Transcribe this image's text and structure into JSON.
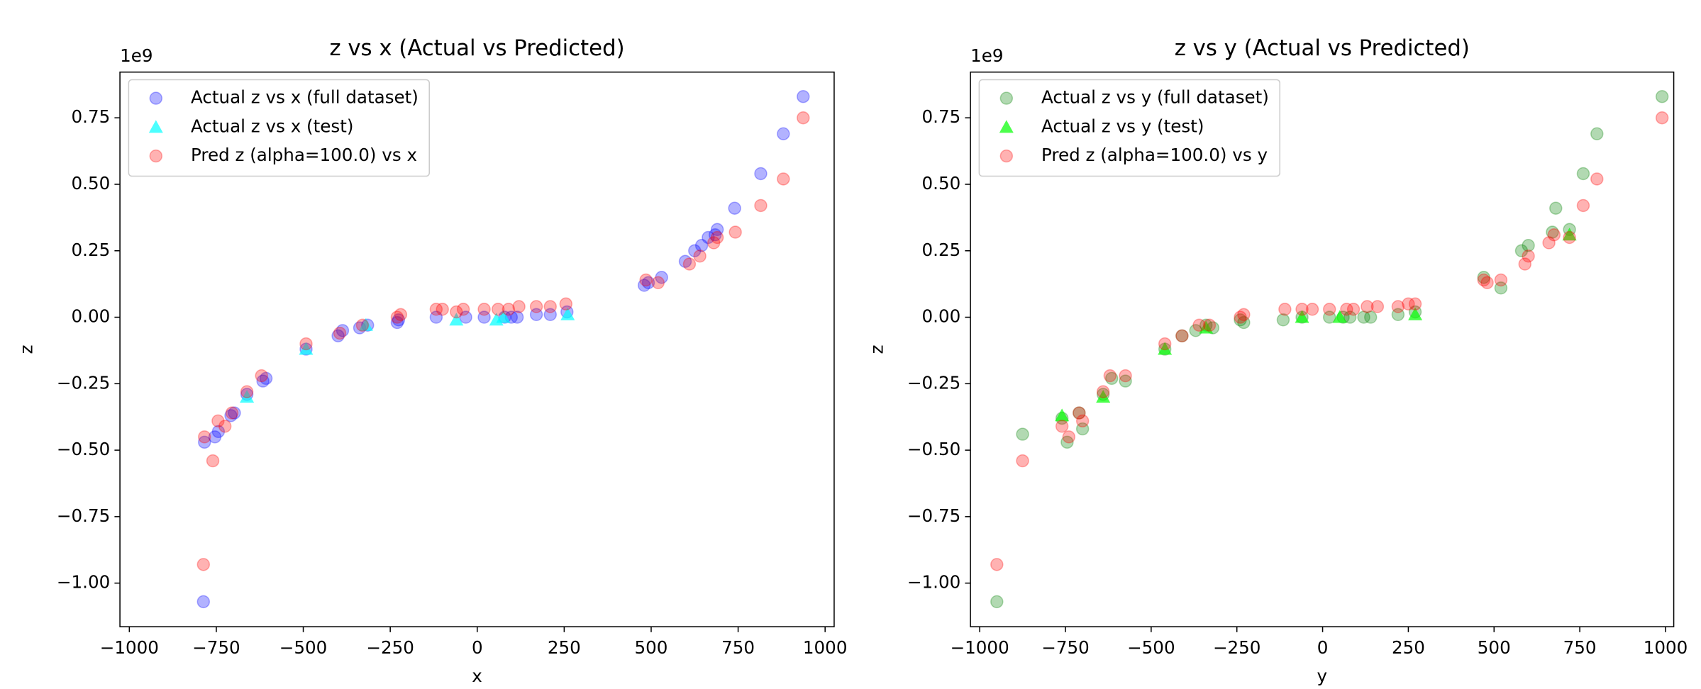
{
  "chart_data": [
    {
      "type": "scatter",
      "title": "z vs x (Actual vs Predicted)",
      "x_label": "x",
      "y_label": "z",
      "y_offset_label": "1e9",
      "xlim": [
        -1027,
        1026
      ],
      "ylim": [
        -1.164,
        0.922
      ],
      "legend": "upper left",
      "xticks": [
        {
          "value": -1000,
          "label": "−1000"
        },
        {
          "value": -750,
          "label": "−750"
        },
        {
          "value": -500,
          "label": "−500"
        },
        {
          "value": -250,
          "label": "−250"
        },
        0,
        250,
        500,
        750,
        1000
      ],
      "yticks": [
        {
          "value": -1,
          "label": "−1.00"
        },
        {
          "value": -0.75,
          "label": "−0.75"
        },
        {
          "value": -0.5,
          "label": "−0.50"
        },
        {
          "value": -0.25,
          "label": "−0.25"
        },
        {
          "value": 0,
          "label": "0.00"
        },
        0.25,
        {
          "value": 0.5,
          "label": "0.50"
        },
        0.75
      ],
      "series": [
        {
          "name": "Actual z vs x (full dataset)",
          "color": "#0000ff",
          "alpha": 0.3,
          "marker": "circle",
          "x": [
            -787,
            -784,
            -754,
            -744,
            -708,
            -698,
            -662,
            -616,
            -607,
            -492,
            -400,
            -387,
            -338,
            -315,
            -230,
            -226,
            -118,
            -33,
            20,
            79,
            98,
            115,
            170,
            210,
            258,
            480,
            492,
            530,
            598,
            625,
            645,
            664,
            684,
            690,
            740,
            815,
            880,
            937
          ],
          "values": [
            -1.07,
            -0.47,
            -0.45,
            -0.43,
            -0.37,
            -0.36,
            -0.29,
            -0.24,
            -0.23,
            -0.12,
            -0.07,
            -0.05,
            -0.04,
            -0.03,
            -0.02,
            -0.01,
            0,
            0,
            0,
            0,
            0,
            0,
            0.01,
            0.01,
            0.02,
            0.12,
            0.13,
            0.15,
            0.21,
            0.25,
            0.27,
            0.3,
            0.31,
            0.33,
            0.41,
            0.54,
            0.69,
            0.83
          ]
        },
        {
          "name": "Actual z vs x (test)",
          "color": "#00ffff",
          "alpha": 0.7,
          "marker": "triangle",
          "x": [
            -662,
            -492,
            -320,
            -60,
            55,
            75,
            260
          ],
          "values": [
            -0.3,
            -0.12,
            -0.03,
            -0.01,
            -0.01,
            0,
            0.01
          ]
        },
        {
          "name": "Pred z (alpha=100.0) vs x",
          "color": "#ff0000",
          "alpha": 0.3,
          "marker": "circle",
          "x": [
            -787,
            -784,
            -760,
            -745,
            -725,
            -705,
            -662,
            -620,
            -492,
            -395,
            -330,
            -230,
            -220,
            -118,
            -100,
            -60,
            -40,
            20,
            60,
            90,
            120,
            170,
            210,
            255,
            485,
            520,
            610,
            640,
            680,
            690,
            742,
            815,
            880,
            937
          ],
          "values": [
            -0.93,
            -0.45,
            -0.54,
            -0.39,
            -0.41,
            -0.36,
            -0.28,
            -0.22,
            -0.1,
            -0.06,
            -0.03,
            0,
            0.01,
            0.03,
            0.03,
            0.02,
            0.03,
            0.03,
            0.03,
            0.03,
            0.04,
            0.04,
            0.04,
            0.05,
            0.14,
            0.13,
            0.2,
            0.23,
            0.28,
            0.3,
            0.32,
            0.42,
            0.52,
            0.75
          ]
        }
      ]
    },
    {
      "type": "scatter",
      "title": "z vs y (Actual vs Predicted)",
      "x_label": "y",
      "y_label": "z",
      "y_offset_label": "1e9",
      "xlim": [
        -1027,
        1024
      ],
      "ylim": [
        -1.164,
        0.922
      ],
      "legend": "upper left",
      "xticks": [
        {
          "value": -1000,
          "label": "−1000"
        },
        {
          "value": -750,
          "label": "−750"
        },
        {
          "value": -500,
          "label": "−500"
        },
        {
          "value": -250,
          "label": "−250"
        },
        0,
        250,
        500,
        750,
        1000
      ],
      "yticks": [
        {
          "value": -1,
          "label": "−1.00"
        },
        {
          "value": -0.75,
          "label": "−0.75"
        },
        {
          "value": -0.5,
          "label": "−0.50"
        },
        {
          "value": -0.25,
          "label": "−0.25"
        },
        {
          "value": 0,
          "label": "0.00"
        },
        0.25,
        {
          "value": 0.5,
          "label": "0.50"
        },
        0.75
      ],
      "series": [
        {
          "name": "Actual z vs y (full dataset)",
          "color": "#008000",
          "alpha": 0.3,
          "marker": "circle",
          "x": [
            -950,
            -875,
            -760,
            -745,
            -710,
            -700,
            -640,
            -615,
            -575,
            -460,
            -410,
            -370,
            -340,
            -320,
            -240,
            -230,
            -115,
            -60,
            20,
            60,
            80,
            120,
            140,
            220,
            270,
            470,
            520,
            580,
            600,
            670,
            680,
            720,
            760,
            800,
            990
          ],
          "values": [
            -1.07,
            -0.44,
            -0.38,
            -0.47,
            -0.36,
            -0.42,
            -0.29,
            -0.23,
            -0.24,
            -0.12,
            -0.07,
            -0.05,
            -0.03,
            -0.04,
            -0.01,
            -0.02,
            -0.01,
            0,
            0,
            0,
            0,
            0,
            0,
            0.01,
            0.02,
            0.15,
            0.11,
            0.25,
            0.27,
            0.32,
            0.41,
            0.33,
            0.54,
            0.69,
            0.83
          ]
        },
        {
          "name": "Actual z vs y (test)",
          "color": "#00ff00",
          "alpha": 0.7,
          "marker": "triangle",
          "x": [
            -760,
            -640,
            -460,
            -340,
            -60,
            50,
            270,
            720
          ],
          "values": [
            -0.37,
            -0.3,
            -0.12,
            -0.04,
            0,
            0,
            0.01,
            0.31
          ]
        },
        {
          "name": "Pred z (alpha=100.0) vs y",
          "color": "#ff0000",
          "alpha": 0.3,
          "marker": "circle",
          "x": [
            -950,
            -875,
            -760,
            -740,
            -710,
            -700,
            -640,
            -620,
            -575,
            -460,
            -410,
            -360,
            -330,
            -240,
            -230,
            -110,
            -60,
            -30,
            20,
            70,
            90,
            130,
            160,
            220,
            250,
            270,
            470,
            480,
            520,
            590,
            600,
            660,
            675,
            720,
            760,
            800,
            990
          ],
          "values": [
            -0.93,
            -0.54,
            -0.41,
            -0.45,
            -0.36,
            -0.39,
            -0.28,
            -0.22,
            -0.22,
            -0.1,
            -0.07,
            -0.03,
            -0.03,
            0,
            0.01,
            0.03,
            0.03,
            0.03,
            0.03,
            0.03,
            0.03,
            0.04,
            0.04,
            0.04,
            0.05,
            0.05,
            0.14,
            0.13,
            0.14,
            0.2,
            0.23,
            0.28,
            0.31,
            0.3,
            0.42,
            0.52,
            0.75
          ]
        }
      ]
    }
  ]
}
